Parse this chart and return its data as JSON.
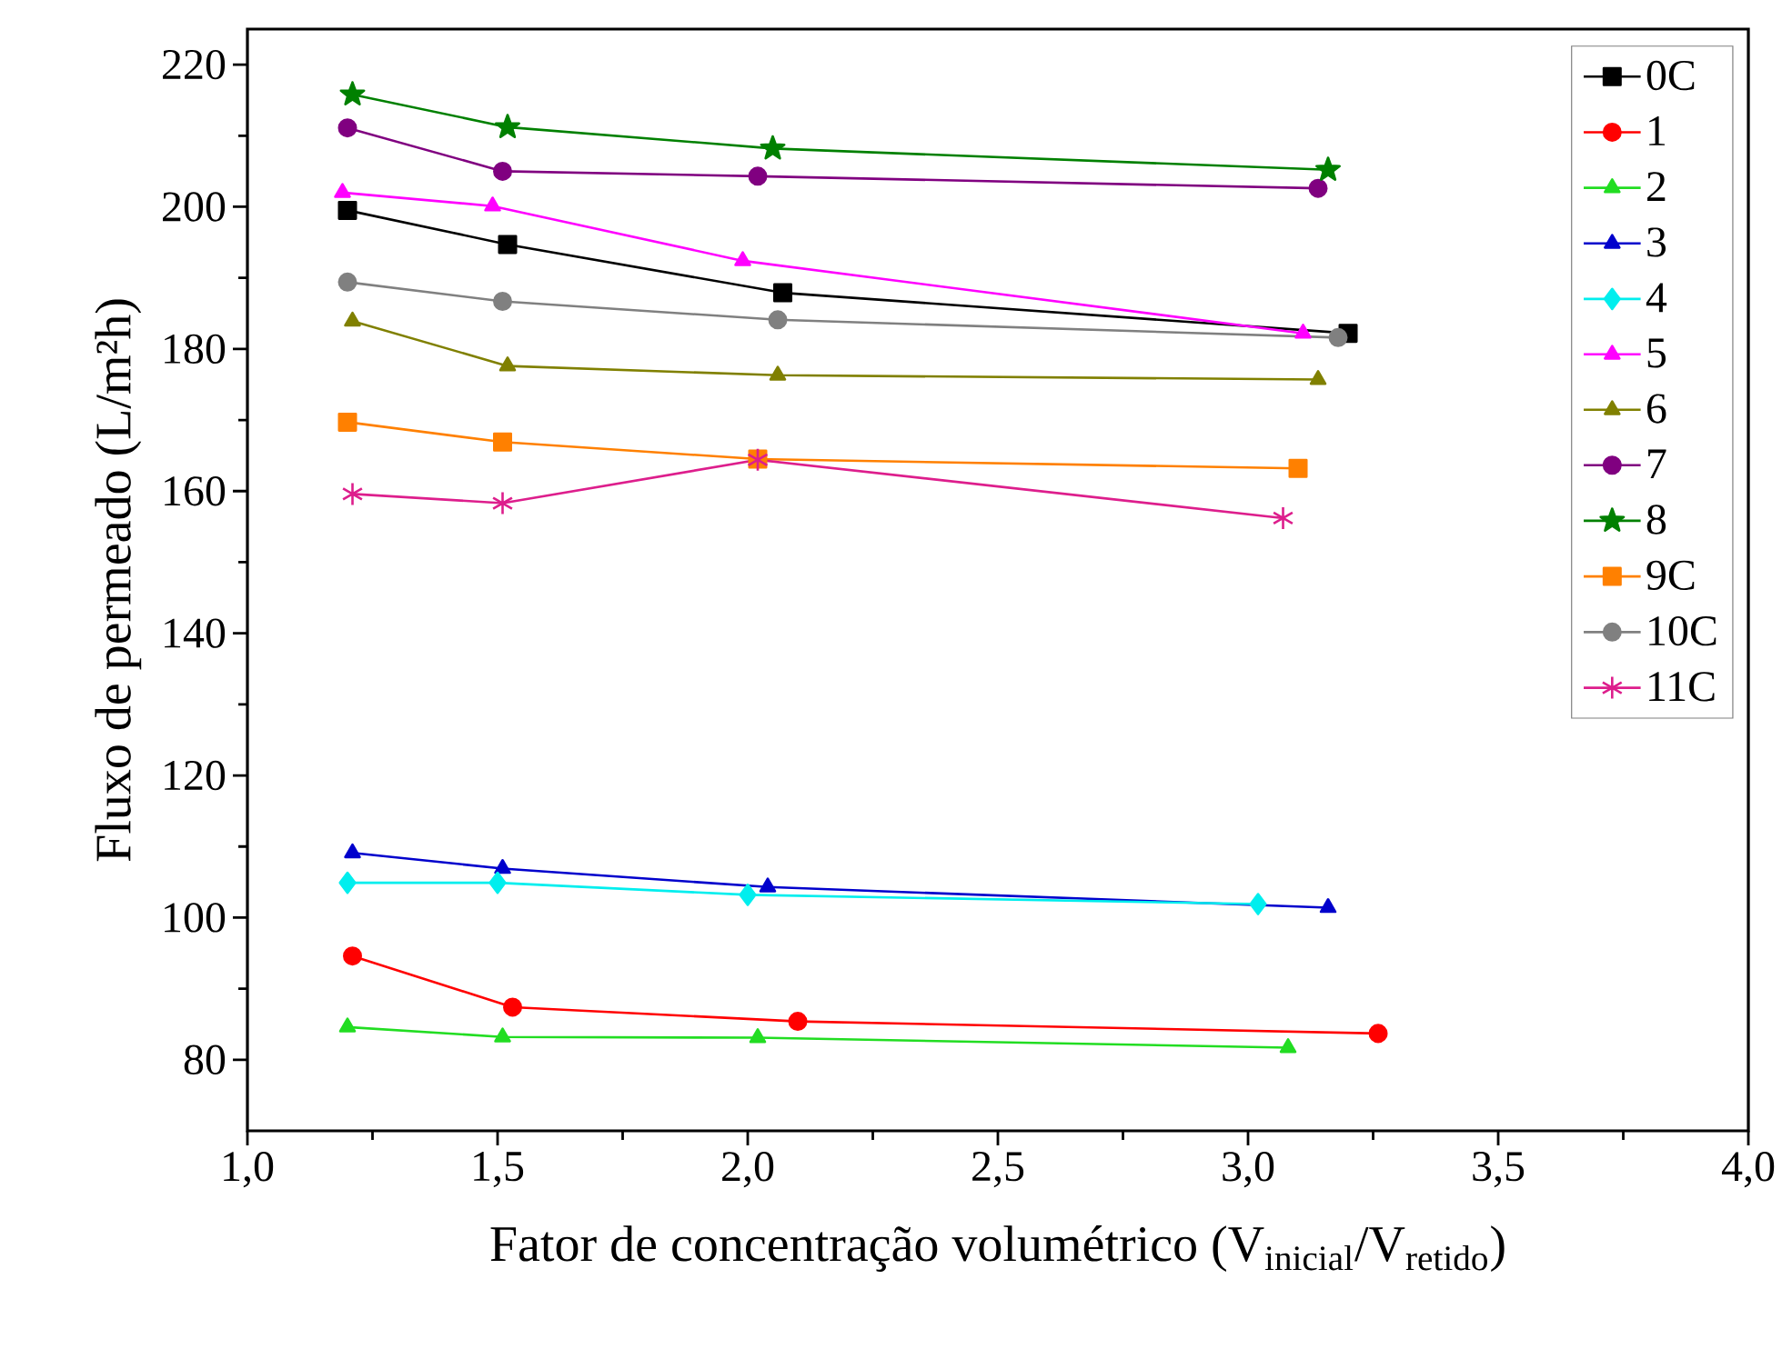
{
  "chart_data": {
    "type": "line",
    "xlabel": "Fator de concentração volumétrico (V$_{inicial}$/V$_{retido}$)",
    "ylabel": "Fluxo de permeado (L/m²h)",
    "xlim": [
      1.0,
      4.0
    ],
    "ylim": [
      70,
      225
    ],
    "xticks": [
      {
        "value": 1.0,
        "label": "1,0"
      },
      {
        "value": 1.5,
        "label": "1,5"
      },
      {
        "value": 2.0,
        "label": "2,0"
      },
      {
        "value": 2.5,
        "label": "2,5"
      },
      {
        "value": 3.0,
        "label": "3,0"
      },
      {
        "value": 3.5,
        "label": "3,5"
      },
      {
        "value": 4.0,
        "label": "4,0"
      }
    ],
    "yticks": [
      80,
      100,
      120,
      140,
      160,
      180,
      200,
      220
    ],
    "legend": "top right",
    "series": [
      {
        "name": "0C",
        "color": "#000000",
        "marker": "square",
        "x": [
          1.2,
          1.52,
          2.07,
          3.2
        ],
        "values": [
          199.5,
          194.7,
          187.9,
          182.2
        ]
      },
      {
        "name": "1",
        "color": "#ff0000",
        "marker": "circle",
        "x": [
          1.21,
          1.53,
          2.1,
          3.26
        ],
        "values": [
          94.6,
          87.4,
          85.4,
          83.7
        ]
      },
      {
        "name": "2",
        "color": "#22dd22",
        "marker": "triangle",
        "x": [
          1.2,
          1.51,
          2.02,
          3.08
        ],
        "values": [
          84.6,
          83.2,
          83.1,
          81.7
        ]
      },
      {
        "name": "3",
        "color": "#0000cc",
        "marker": "triangle",
        "x": [
          1.21,
          1.51,
          2.04,
          3.16
        ],
        "values": [
          109.1,
          106.9,
          104.3,
          101.4
        ]
      },
      {
        "name": "4",
        "color": "#00eeee",
        "marker": "diamond",
        "x": [
          1.2,
          1.5,
          2.0,
          3.02
        ],
        "values": [
          104.9,
          104.9,
          103.2,
          101.9
        ]
      },
      {
        "name": "5",
        "color": "#ff00ff",
        "marker": "triangle",
        "x": [
          1.19,
          1.49,
          1.99,
          3.11
        ],
        "values": [
          202.0,
          200.1,
          192.4,
          182.2
        ]
      },
      {
        "name": "6",
        "color": "#808000",
        "marker": "triangle",
        "x": [
          1.21,
          1.52,
          2.06,
          3.14
        ],
        "values": [
          183.9,
          177.6,
          176.3,
          175.7
        ]
      },
      {
        "name": "7",
        "color": "#800080",
        "marker": "circle",
        "x": [
          1.2,
          1.51,
          2.02,
          3.14
        ],
        "values": [
          211.1,
          205.0,
          204.3,
          202.6
        ]
      },
      {
        "name": "8",
        "color": "#008000",
        "marker": "star",
        "x": [
          1.21,
          1.52,
          2.05,
          3.16
        ],
        "values": [
          215.8,
          211.2,
          208.2,
          205.2
        ]
      },
      {
        "name": "9C",
        "color": "#ff8000",
        "marker": "square",
        "x": [
          1.2,
          1.51,
          2.02,
          3.1
        ],
        "values": [
          169.7,
          166.9,
          164.5,
          163.2
        ]
      },
      {
        "name": "10C",
        "color": "#808080",
        "marker": "circle",
        "x": [
          1.2,
          1.51,
          2.06,
          3.18
        ],
        "values": [
          189.4,
          186.7,
          184.1,
          181.6
        ]
      },
      {
        "name": "11C",
        "color": "#dd1e8c",
        "marker": "cross",
        "x": [
          1.21,
          1.51,
          2.02,
          3.07
        ],
        "values": [
          159.6,
          158.3,
          164.4,
          156.2
        ]
      }
    ]
  }
}
